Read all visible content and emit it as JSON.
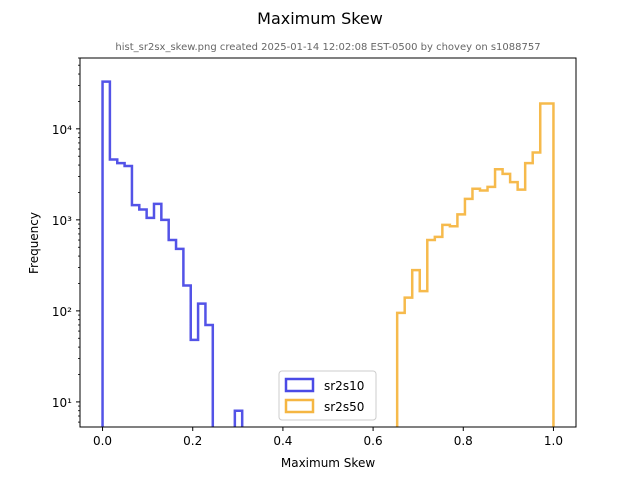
{
  "chart_data": {
    "type": "histogram",
    "title": "Maximum Skew",
    "subtitle": "hist_sr2sx_skew.png created 2025-01-14 12:02:08 EST-0500 by chovey on s1088757",
    "xlabel": "Maximum Skew",
    "ylabel": "Frequency",
    "xlim": [
      -0.05,
      1.05
    ],
    "ylim": [
      5.3,
      60000
    ],
    "yscale": "log",
    "xticks": [
      0.0,
      0.2,
      0.4,
      0.6,
      0.8,
      1.0
    ],
    "xtick_labels": [
      "0.0",
      "0.2",
      "0.4",
      "0.6",
      "0.8",
      "1.0"
    ],
    "yticks": [
      10,
      100,
      1000,
      10000
    ],
    "ytick_labels": [
      "10¹",
      "10²",
      "10³",
      "10⁴"
    ],
    "legend_position": "lower center",
    "series": [
      {
        "name": "sr2s10",
        "color": "#4a4ae6",
        "bin_edges": [
          0.0,
          0.0163,
          0.0326,
          0.0489,
          0.0652,
          0.0815,
          0.0978,
          0.1141,
          0.1304,
          0.1467,
          0.163,
          0.1793,
          0.1956,
          0.2119,
          0.2282,
          0.2445,
          0.2608,
          0.2771,
          0.2934,
          0.3097,
          0.326
        ],
        "counts": [
          33000,
          4600,
          4200,
          3900,
          1450,
          1300,
          1050,
          1500,
          1000,
          600,
          480,
          190,
          48,
          120,
          70,
          0,
          0,
          0,
          8,
          0
        ]
      },
      {
        "name": "sr2s50",
        "color": "#f5b642",
        "bin_edges": [
          0.6534,
          0.6701,
          0.6868,
          0.7035,
          0.7202,
          0.7369,
          0.7536,
          0.7703,
          0.787,
          0.8037,
          0.8204,
          0.8371,
          0.8538,
          0.8705,
          0.8872,
          0.9039,
          0.9206,
          0.9373,
          0.954,
          0.9707,
          0.9874,
          1.0
        ],
        "counts": [
          95,
          140,
          280,
          165,
          600,
          650,
          880,
          850,
          1150,
          1700,
          2200,
          2100,
          2300,
          3600,
          3200,
          2600,
          2150,
          4200,
          5500,
          19000,
          19000
        ]
      }
    ]
  }
}
